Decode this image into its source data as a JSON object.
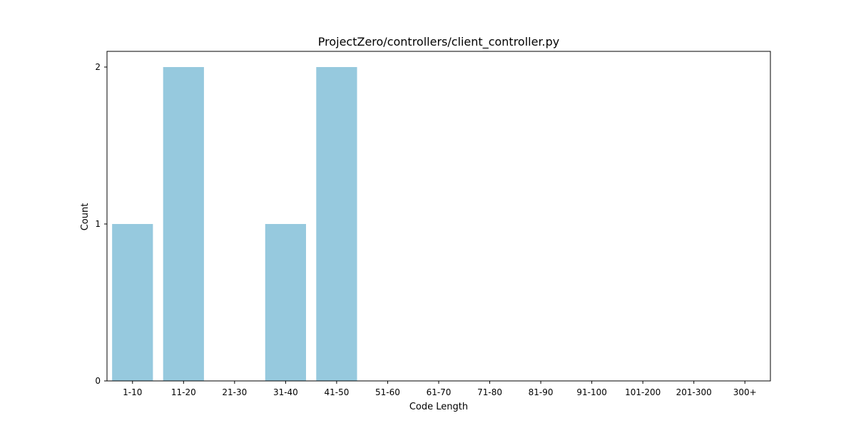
{
  "chart_data": {
    "type": "bar",
    "title": "ProjectZero/controllers/client_controller.py",
    "xlabel": "Code Length",
    "ylabel": "Count",
    "categories": [
      "1-10",
      "11-20",
      "21-30",
      "31-40",
      "41-50",
      "51-60",
      "61-70",
      "71-80",
      "81-90",
      "91-100",
      "101-200",
      "201-300",
      "300+"
    ],
    "values": [
      1,
      2,
      0,
      1,
      2,
      0,
      0,
      0,
      0,
      0,
      0,
      0,
      0
    ],
    "yticks": [
      "0",
      "1",
      "2"
    ],
    "ylim": [
      0,
      2.1
    ],
    "bar_color": "#96c9de",
    "grid": false,
    "legend": "none"
  }
}
